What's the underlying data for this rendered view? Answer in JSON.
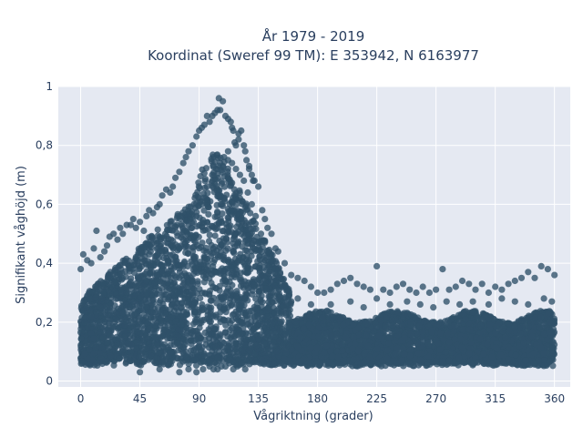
{
  "chart_data": {
    "type": "scatter",
    "title_lines": [
      "År 1979 - 2019",
      "Koordinat (Sweref 99 TM): E 353942, N 6163977"
    ],
    "xlabel": "Vågriktning (grader)",
    "ylabel": "Signifikant våghöjd (m)",
    "xlim": [
      -17,
      372
    ],
    "ylim": [
      -0.02,
      1.0
    ],
    "x_ticks": [
      0,
      45,
      90,
      135,
      180,
      225,
      270,
      315,
      360
    ],
    "x_tick_labels": [
      "0",
      "45",
      "90",
      "135",
      "180",
      "225",
      "270",
      "315",
      "360"
    ],
    "y_ticks": [
      0,
      0.2,
      0.4,
      0.6,
      0.8,
      1
    ],
    "y_tick_labels": [
      "0",
      "0,2",
      "0,4",
      "0,6",
      "0,8",
      "1"
    ],
    "grid": true,
    "legend": "none",
    "colors": {
      "marker": "#2f5169",
      "plot_bg": "#e5e9f2",
      "grid": "#ffffff",
      "text": "#2a3f5f"
    },
    "series": [
      {
        "x": [
          0,
          2,
          5,
          8,
          10,
          12,
          15,
          18,
          20,
          22,
          25,
          28,
          30,
          32,
          35,
          38,
          40,
          42,
          45,
          48,
          50,
          52,
          55,
          58,
          60,
          62,
          65,
          68,
          70,
          72,
          75,
          78,
          80,
          82,
          85,
          88,
          90,
          92,
          94,
          96,
          98,
          100,
          102,
          104,
          105,
          106,
          108,
          110,
          112,
          114,
          115,
          116,
          118,
          120,
          122,
          124,
          125,
          126,
          128,
          130,
          132,
          135,
          138,
          140,
          142,
          145,
          148,
          150,
          155,
          160,
          165,
          170,
          175,
          180,
          185,
          190,
          195,
          200,
          205,
          210,
          215,
          220,
          225,
          230,
          235,
          240,
          245,
          250,
          255,
          260,
          265,
          270,
          275,
          280,
          285,
          290,
          295,
          300,
          305,
          310,
          315,
          320,
          325,
          330,
          335,
          340,
          345,
          350,
          355,
          360,
          3,
          8,
          15,
          22,
          28,
          35,
          42,
          50,
          58,
          66,
          72,
          78,
          84,
          88,
          92,
          96,
          100,
          103,
          106,
          109,
          112,
          115,
          118,
          121,
          124,
          127,
          130,
          133,
          137,
          142,
          148,
          155,
          165,
          175,
          190,
          205,
          215,
          225,
          235,
          248,
          258,
          268,
          278,
          288,
          298,
          310,
          320,
          330,
          340,
          352,
          358,
          45,
          60,
          75,
          82,
          88,
          93,
          98,
          101,
          104,
          107,
          110,
          113,
          116,
          119,
          122,
          125,
          95,
          100,
          108,
          112,
          117,
          120,
          128,
          131
        ],
        "y": [
          0.38,
          0.43,
          0.41,
          0.4,
          0.45,
          0.51,
          0.42,
          0.44,
          0.46,
          0.49,
          0.5,
          0.48,
          0.52,
          0.5,
          0.53,
          0.53,
          0.55,
          0.52,
          0.54,
          0.51,
          0.56,
          0.58,
          0.57,
          0.59,
          0.6,
          0.63,
          0.65,
          0.64,
          0.66,
          0.69,
          0.71,
          0.74,
          0.76,
          0.78,
          0.8,
          0.83,
          0.85,
          0.86,
          0.87,
          0.9,
          0.88,
          0.9,
          0.91,
          0.92,
          0.96,
          0.92,
          0.95,
          0.9,
          0.89,
          0.88,
          0.86,
          0.85,
          0.8,
          0.82,
          0.85,
          0.8,
          0.78,
          0.75,
          0.73,
          0.7,
          0.68,
          0.66,
          0.58,
          0.55,
          0.52,
          0.5,
          0.45,
          0.44,
          0.4,
          0.36,
          0.35,
          0.34,
          0.32,
          0.3,
          0.3,
          0.31,
          0.33,
          0.34,
          0.35,
          0.33,
          0.32,
          0.31,
          0.39,
          0.31,
          0.3,
          0.32,
          0.33,
          0.31,
          0.3,
          0.32,
          0.3,
          0.31,
          0.38,
          0.31,
          0.32,
          0.34,
          0.33,
          0.31,
          0.33,
          0.3,
          0.32,
          0.31,
          0.33,
          0.34,
          0.35,
          0.37,
          0.35,
          0.39,
          0.38,
          0.36,
          0.2,
          0.22,
          0.25,
          0.24,
          0.28,
          0.3,
          0.32,
          0.34,
          0.36,
          0.4,
          0.42,
          0.48,
          0.52,
          0.56,
          0.6,
          0.66,
          0.7,
          0.72,
          0.74,
          0.76,
          0.75,
          0.74,
          0.72,
          0.7,
          0.68,
          0.64,
          0.6,
          0.56,
          0.5,
          0.44,
          0.38,
          0.32,
          0.28,
          0.26,
          0.26,
          0.27,
          0.25,
          0.28,
          0.26,
          0.27,
          0.26,
          0.25,
          0.27,
          0.26,
          0.27,
          0.26,
          0.28,
          0.27,
          0.26,
          0.28,
          0.27,
          0.03,
          0.04,
          0.03,
          0.04,
          0.03,
          0.04,
          0.05,
          0.04,
          0.04,
          0.05,
          0.05,
          0.06,
          0.04,
          0.05,
          0.06,
          0.04,
          0.62,
          0.68,
          0.73,
          0.78,
          0.81,
          0.84,
          0.72,
          0.68
        ]
      }
    ]
  }
}
